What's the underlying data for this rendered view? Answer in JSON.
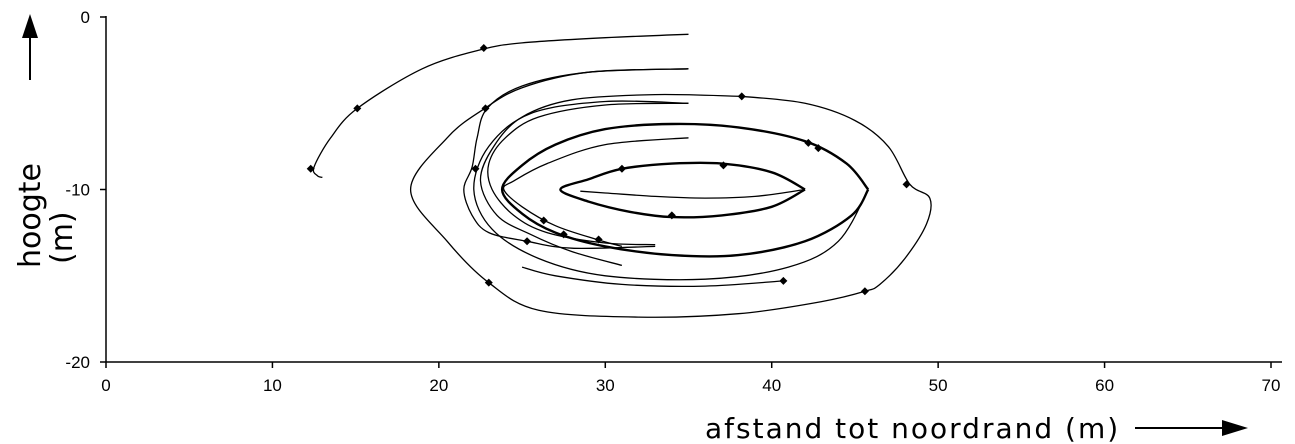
{
  "chart_data": {
    "type": "line",
    "xlabel": "afstand tot noordrand (m)",
    "ylabel": [
      "hoogte",
      "(m)"
    ],
    "xlim": [
      0,
      70
    ],
    "ylim": [
      -20,
      0
    ],
    "x_ticks": [
      0,
      10,
      20,
      30,
      40,
      50,
      60,
      70
    ],
    "y_ticks": [
      0,
      -10,
      -20
    ],
    "grid": false,
    "series": [
      {
        "line": "thin",
        "points": [
          [
            35,
            -1
          ],
          [
            30,
            -1.2
          ],
          [
            25,
            -1.5
          ],
          [
            22.5,
            -1.9
          ],
          [
            19,
            -3
          ],
          [
            15.1,
            -5.3
          ],
          [
            13.5,
            -7
          ],
          [
            12.5,
            -8.7
          ],
          [
            12.7,
            -9.2
          ],
          [
            13,
            -9.3
          ]
        ],
        "markers": [
          [
            22.7,
            -1.8
          ],
          [
            15.1,
            -5.3
          ],
          [
            12.3,
            -8.8
          ]
        ]
      },
      {
        "line": "thin",
        "points": [
          [
            35,
            -3
          ],
          [
            29,
            -3.2
          ],
          [
            25,
            -4
          ],
          [
            22.9,
            -5.3
          ],
          [
            22.3,
            -7
          ],
          [
            22,
            -8.7
          ],
          [
            21.5,
            -10
          ],
          [
            22,
            -11.5
          ],
          [
            23,
            -12.5
          ],
          [
            25.3,
            -13
          ],
          [
            28,
            -13.4
          ],
          [
            33,
            -13.3
          ]
        ],
        "markers": [
          [
            22.8,
            -5.3
          ],
          [
            22.2,
            -8.8
          ],
          [
            25.3,
            -13
          ]
        ]
      },
      {
        "line": "thin",
        "points": [
          [
            35,
            -5
          ],
          [
            30,
            -5.1
          ],
          [
            26,
            -5.8
          ],
          [
            24,
            -7
          ],
          [
            23,
            -8.5
          ],
          [
            23.2,
            -10
          ],
          [
            24.5,
            -11.5
          ],
          [
            26.5,
            -12.5
          ],
          [
            30,
            -13.1
          ],
          [
            33,
            -13.2
          ]
        ],
        "markers": []
      },
      {
        "line": "thin",
        "points": [
          [
            35,
            -7
          ],
          [
            30,
            -7.4
          ],
          [
            26.5,
            -8.5
          ],
          [
            24.5,
            -9.5
          ],
          [
            23.9,
            -10
          ],
          [
            25,
            -11
          ],
          [
            27,
            -12.1
          ],
          [
            29.5,
            -12.9
          ],
          [
            31,
            -13.3
          ]
        ],
        "markers": [
          [
            26.3,
            -11.8
          ],
          [
            27.5,
            -12.6
          ],
          [
            29.6,
            -12.9
          ]
        ]
      },
      {
        "line": "thin",
        "points": [
          [
            38.2,
            -4.6
          ],
          [
            33,
            -4.5
          ],
          [
            28,
            -4.8
          ],
          [
            25,
            -5.8
          ],
          [
            23.3,
            -7.5
          ],
          [
            22.5,
            -9.5
          ],
          [
            23.5,
            -11.5
          ],
          [
            25.5,
            -12.6
          ],
          [
            28,
            -13.6
          ],
          [
            31,
            -14.4
          ]
        ],
        "markers": [
          [
            38.2,
            -4.6
          ]
        ]
      },
      {
        "line": "thin",
        "points": [
          [
            38.2,
            -4.6
          ],
          [
            42,
            -5
          ],
          [
            45,
            -6
          ],
          [
            47,
            -7.5
          ],
          [
            48.3,
            -9.7
          ],
          [
            49.5,
            -10.5
          ],
          [
            49.3,
            -12
          ],
          [
            48,
            -14
          ],
          [
            46.5,
            -15.5
          ],
          [
            45.6,
            -15.9
          ],
          [
            43,
            -16.5
          ],
          [
            38,
            -17.2
          ],
          [
            32,
            -17.4
          ],
          [
            26,
            -17
          ],
          [
            23,
            -15.4
          ],
          [
            20.5,
            -13
          ],
          [
            18.3,
            -10
          ],
          [
            20.5,
            -7
          ],
          [
            22.6,
            -5.4
          ],
          [
            25,
            -4.1
          ],
          [
            29,
            -3.2
          ],
          [
            35,
            -3
          ]
        ],
        "markers": [
          [
            48.1,
            -9.7
          ],
          [
            45.6,
            -15.9
          ],
          [
            23,
            -15.4
          ]
        ]
      },
      {
        "line": "thin",
        "points": [
          [
            40.7,
            -15.3
          ],
          [
            36,
            -15.6
          ],
          [
            31,
            -15.5
          ],
          [
            27,
            -15
          ],
          [
            25,
            -14.5
          ]
        ],
        "markers": [
          [
            40.7,
            -15.3
          ]
        ]
      },
      {
        "line": "bold",
        "points": [
          [
            45.8,
            -10
          ],
          [
            44.5,
            -8.5
          ],
          [
            42,
            -7.2
          ],
          [
            38,
            -6.4
          ],
          [
            34,
            -6.2
          ],
          [
            30,
            -6.5
          ],
          [
            27,
            -7.4
          ],
          [
            25,
            -8.6
          ],
          [
            23.8,
            -10
          ],
          [
            25,
            -11.4
          ],
          [
            27,
            -12.5
          ],
          [
            30,
            -13.3
          ],
          [
            34,
            -13.8
          ],
          [
            38,
            -13.8
          ],
          [
            42,
            -13
          ],
          [
            44.8,
            -11.5
          ],
          [
            45.8,
            -10
          ]
        ],
        "markers": [
          [
            42.2,
            -7.3
          ],
          [
            42.8,
            -7.6
          ]
        ]
      },
      {
        "line": "thin",
        "points": [
          [
            45.8,
            -10
          ],
          [
            44,
            -13
          ],
          [
            41,
            -14.5
          ],
          [
            36,
            -15.2
          ],
          [
            30,
            -15
          ],
          [
            26,
            -14
          ],
          [
            23.2,
            -12.3
          ],
          [
            22.1,
            -10
          ],
          [
            23,
            -7.5
          ],
          [
            25.5,
            -5.6
          ],
          [
            30,
            -4.9
          ],
          [
            35,
            -5
          ]
        ],
        "markers": []
      },
      {
        "line": "bold",
        "points": [
          [
            42,
            -10
          ],
          [
            40,
            -9
          ],
          [
            37,
            -8.5
          ],
          [
            34,
            -8.5
          ],
          [
            31,
            -8.8
          ],
          [
            29,
            -9.4
          ],
          [
            27.3,
            -10
          ],
          [
            29,
            -10.7
          ],
          [
            31.5,
            -11.3
          ],
          [
            34,
            -11.6
          ],
          [
            37,
            -11.5
          ],
          [
            40,
            -11
          ],
          [
            42,
            -10
          ]
        ],
        "markers": [
          [
            31,
            -8.8
          ],
          [
            37.1,
            -8.6
          ],
          [
            34,
            -11.5
          ]
        ]
      },
      {
        "line": "thin",
        "points": [
          [
            42,
            -10
          ],
          [
            39,
            -10.4
          ],
          [
            36,
            -10.5
          ],
          [
            33,
            -10.4
          ],
          [
            30,
            -10.2
          ],
          [
            28.5,
            -10.1
          ]
        ],
        "markers": []
      }
    ]
  }
}
